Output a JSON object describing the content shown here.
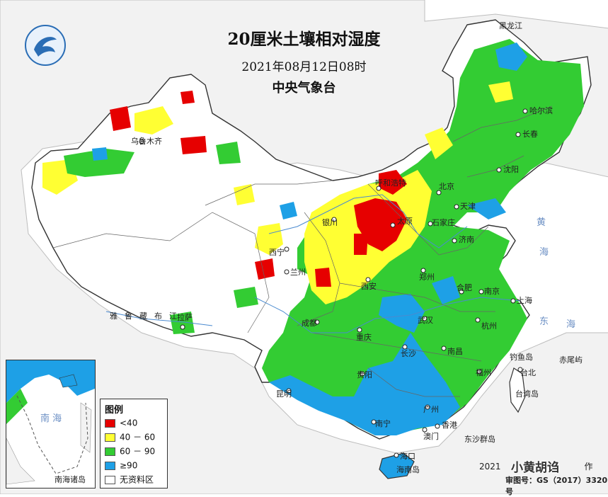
{
  "title": "20厘米土壤相对湿度",
  "subtitle": "2021年08月12日08时",
  "agency": "中央气象台",
  "legend": {
    "title": "图例",
    "items": [
      {
        "label": "<40",
        "color": "#e60000"
      },
      {
        "label": "40 － 60",
        "color": "#ffff33"
      },
      {
        "label": "60 － 90",
        "color": "#33cc33"
      },
      {
        "label": "≥90",
        "color": "#1ea0e6"
      },
      {
        "label": "无资料区",
        "color": "#ffffff"
      }
    ]
  },
  "cities": [
    {
      "name": "哈尔滨"
    },
    {
      "name": "长春"
    },
    {
      "name": "沈阳"
    },
    {
      "name": "北京"
    },
    {
      "name": "天津"
    },
    {
      "name": "呼和浩特"
    },
    {
      "name": "太原"
    },
    {
      "name": "石家庄"
    },
    {
      "name": "济南"
    },
    {
      "name": "银川"
    },
    {
      "name": "西宁"
    },
    {
      "name": "兰州"
    },
    {
      "name": "西安"
    },
    {
      "name": "郑州"
    },
    {
      "name": "合肥"
    },
    {
      "name": "南京"
    },
    {
      "name": "上海"
    },
    {
      "name": "武汉"
    },
    {
      "name": "杭州"
    },
    {
      "name": "成都"
    },
    {
      "name": "重庆"
    },
    {
      "name": "长沙"
    },
    {
      "name": "南昌"
    },
    {
      "name": "贵阳"
    },
    {
      "name": "福州"
    },
    {
      "name": "台北"
    },
    {
      "name": "昆明"
    },
    {
      "name": "南宁"
    },
    {
      "name": "广州"
    },
    {
      "name": "香港"
    },
    {
      "name": "澳门"
    },
    {
      "name": "海口"
    },
    {
      "name": "拉萨"
    },
    {
      "name": "乌鲁木齐"
    }
  ],
  "regions": [
    "黄",
    "海",
    "东",
    "海",
    "台湾岛",
    "钓鱼岛",
    "赤尾屿",
    "东沙群岛",
    "海南岛",
    "雅鲁藏布江",
    "黑龙江"
  ],
  "inset": {
    "label": "南海诸岛",
    "sea": "南 海"
  },
  "footer": {
    "year_text": "2021",
    "review_no": "审图号：GS（2017）3320号",
    "tail": "作"
  },
  "watermark": "小黄胡诌"
}
